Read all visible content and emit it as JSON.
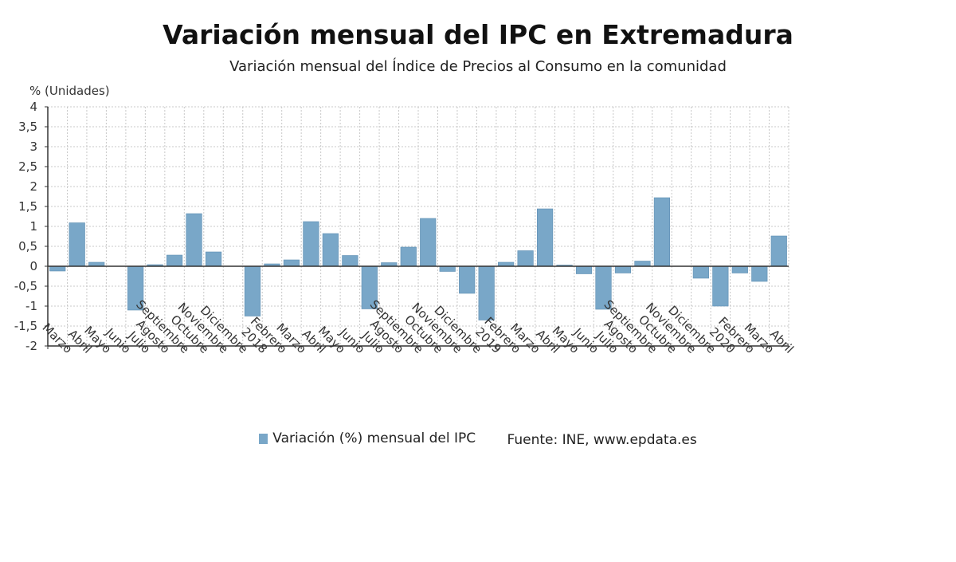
{
  "title": "Variación mensual del IPC en Extremadura",
  "subtitle": "Variación mensual del Índice de Precios al Consumo en la comunidad",
  "legend": {
    "series_label": "Variación (%) mensual del IPC"
  },
  "source": "Fuente: INE, www.epdata.es",
  "colors": {
    "bar": "#79a7c8",
    "bar_stroke": "#5f8fb3",
    "grid": "#c8c8c8",
    "axis": "#333333"
  },
  "chart_data": {
    "type": "bar",
    "ylabel": "% (Unidades)",
    "ylim": [
      -2,
      4
    ],
    "yticks": [
      "4",
      "3,5",
      "3",
      "2,5",
      "2",
      "1,5",
      "1",
      "0,5",
      "0",
      "-0,5",
      "-1",
      "-1,5",
      "-2"
    ],
    "grid": true,
    "legend_position": "bottom",
    "categories": [
      "Marzo",
      "Abril",
      "Mayo",
      "Junio",
      "Julio",
      "Agosto",
      "Septiembre",
      "Octubre",
      "Noviembre",
      "Diciembre",
      "2018",
      "Febrero",
      "Marzo",
      "Abril",
      "Mayo",
      "Junio",
      "Julio",
      "Agosto",
      "Septiembre",
      "Octubre",
      "Noviembre",
      "Diciembre",
      "2019",
      "Febrero",
      "Marzo",
      "Abril",
      "Mayo",
      "Junio",
      "Julio",
      "Agosto",
      "Septiembre",
      "Octubre",
      "Noviembre",
      "Diciembre",
      "2020",
      "Febrero",
      "Marzo",
      "Abril"
    ],
    "series": [
      {
        "name": "Variación (%) mensual del IPC",
        "values": [
          -0.12,
          1.09,
          0.1,
          0.0,
          -1.1,
          0.04,
          0.28,
          1.32,
          0.36,
          0.0,
          -1.25,
          0.06,
          0.16,
          1.12,
          0.82,
          0.27,
          -1.07,
          0.09,
          0.48,
          1.2,
          -0.13,
          -0.68,
          -1.35,
          0.1,
          0.39,
          1.44,
          0.03,
          -0.19,
          -1.08,
          -0.17,
          0.13,
          1.72,
          0.0,
          -0.3,
          -1.0,
          -0.17,
          -0.38,
          0.76
        ]
      }
    ]
  }
}
